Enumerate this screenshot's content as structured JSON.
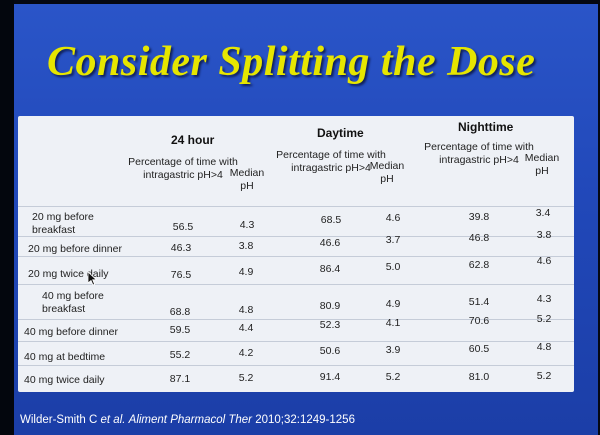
{
  "title": "Consider Splitting the Dose",
  "groups": [
    "24 hour",
    "Daytime",
    "Nighttime"
  ],
  "subheaders": {
    "pct": "Percentage of time with intragastric pH>4",
    "median": "Median pH"
  },
  "rows": [
    {
      "label": "20 mg before breakfast",
      "values": [
        "56.5",
        "4.3",
        "68.5",
        "4.6",
        "39.8",
        "3.4"
      ]
    },
    {
      "label": "20 mg before dinner",
      "values": [
        "46.3",
        "3.8",
        "46.6",
        "3.7",
        "46.8",
        "3.8"
      ]
    },
    {
      "label": "20 mg twice daily",
      "values": [
        "76.5",
        "4.9",
        "86.4",
        "5.0",
        "62.8",
        "4.6"
      ]
    },
    {
      "label": "40 mg before breakfast",
      "values": [
        "68.8",
        "4.8",
        "80.9",
        "4.9",
        "51.4",
        "4.3"
      ]
    },
    {
      "label": "40 mg before dinner",
      "values": [
        "59.5",
        "4.4",
        "52.3",
        "4.1",
        "70.6",
        "5.2"
      ]
    },
    {
      "label": "40 mg at bedtime",
      "values": [
        "55.2",
        "4.2",
        "50.6",
        "3.9",
        "60.5",
        "4.8"
      ]
    },
    {
      "label": "40 mg twice daily",
      "values": [
        "87.1",
        "5.2",
        "91.4",
        "5.2",
        "81.0",
        "5.2"
      ]
    }
  ],
  "citation": {
    "authors": "Wilder-Smith C ",
    "etal": "et al.",
    "journal": "Aliment Pharmacol Ther",
    "ref": " 2010;32:1249-1256"
  }
}
